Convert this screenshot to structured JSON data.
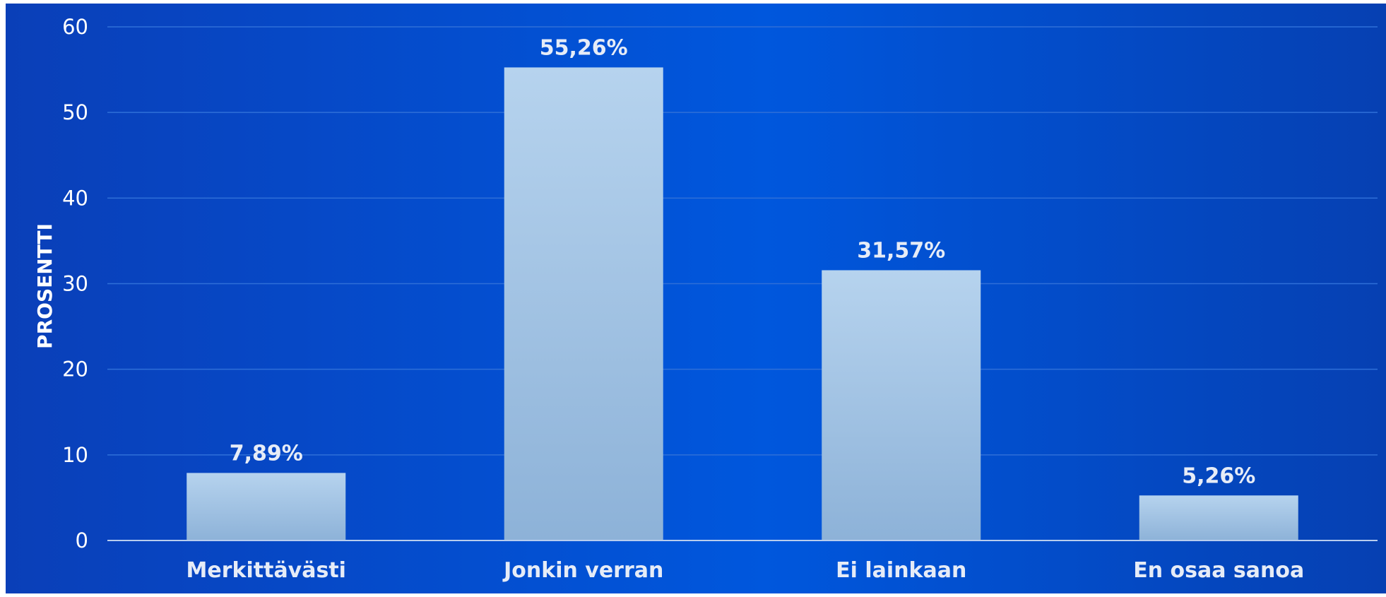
{
  "chart_data": {
    "type": "bar",
    "title": "",
    "xlabel": "",
    "ylabel": "PROSENTTI",
    "categories": [
      "Merkittävästi",
      "Jonkin verran",
      "Ei lainkaan",
      "En osaa sanoa"
    ],
    "values": [
      7.89,
      55.26,
      31.57,
      5.26
    ],
    "data_labels": [
      "7,89%",
      "55,26%",
      "31,57%",
      "5,26%"
    ],
    "ylim": [
      0,
      60
    ],
    "yticks": [
      0,
      10,
      20,
      30,
      40,
      50,
      60
    ],
    "grid": true,
    "legend": "none",
    "colors": {
      "background_start": "#0a3fb8",
      "background_mid": "#0057dd",
      "background_end": "#0640b2",
      "bar_top": "#b6d3ee",
      "bar_bottom": "#8db2d8",
      "gridline": "#2f6fd8",
      "axis_line": "#b8cdee",
      "text": "#ffffff"
    }
  }
}
